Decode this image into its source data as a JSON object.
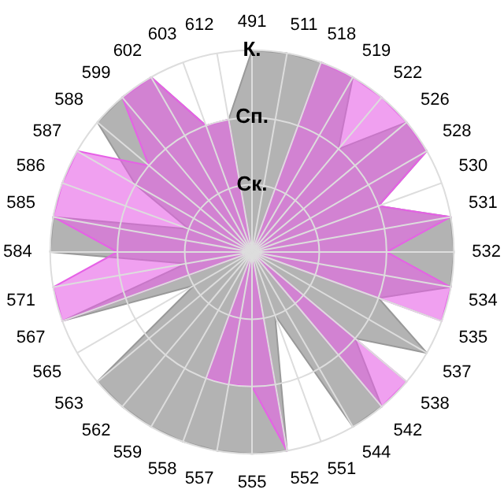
{
  "chart_data": {
    "type": "radar",
    "categories": [
      "491",
      "511",
      "518",
      "519",
      "522",
      "526",
      "528",
      "530",
      "531",
      "532",
      "534",
      "535",
      "537",
      "538",
      "542",
      "544",
      "551",
      "552",
      "555",
      "557",
      "558",
      "559",
      "562",
      "563",
      "565",
      "567",
      "571",
      "584",
      "585",
      "586",
      "587",
      "588",
      "599",
      "602",
      "603",
      "612"
    ],
    "series": [
      {
        "color": "#999999",
        "values": [
          3,
          3,
          3,
          3,
          2,
          3,
          3,
          2,
          3,
          3,
          3,
          2,
          3,
          2,
          3,
          3,
          1,
          3,
          3,
          3,
          3,
          3,
          3,
          3,
          1,
          3,
          1,
          3,
          3,
          1,
          2,
          3,
          3,
          3,
          2,
          2
        ]
      },
      {
        "color": "#e661e6",
        "values": [
          0,
          0,
          3,
          3,
          3,
          3,
          3,
          2,
          3,
          2,
          3,
          3,
          0,
          3,
          3,
          0,
          0,
          3,
          2,
          2,
          2,
          0,
          0,
          0,
          0,
          3,
          3,
          2,
          3,
          3,
          3,
          2,
          3,
          3,
          2,
          2
        ]
      }
    ],
    "ylim": [
      0,
      3
    ],
    "yticks": [
      {
        "value": 1,
        "label": "Ск."
      },
      {
        "value": 2,
        "label": "Сп."
      },
      {
        "value": 3,
        "label": "К."
      }
    ],
    "grid": true,
    "legend": false,
    "marker": "none"
  }
}
